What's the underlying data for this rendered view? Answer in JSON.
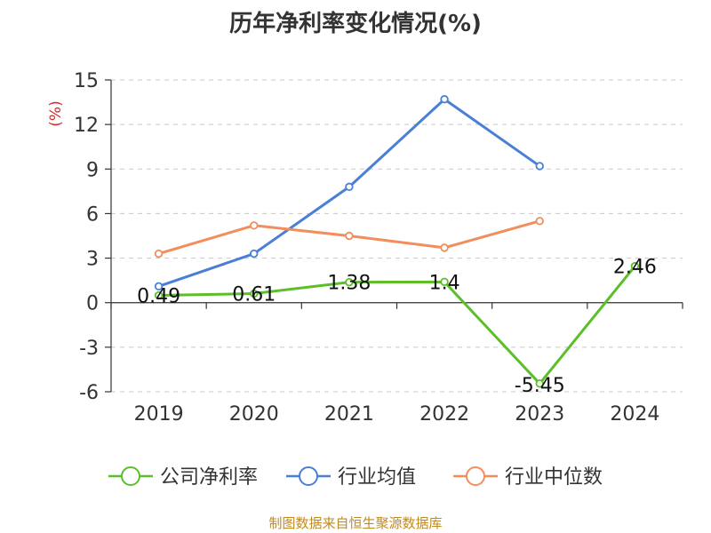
{
  "title": "历年净利率变化情况(%)",
  "footer": "制图数据来自恒生聚源数据库",
  "chart_data": {
    "type": "line",
    "title": "历年净利率变化情况(%)",
    "ylabel": "(%)",
    "categories": [
      "2019",
      "2020",
      "2021",
      "2022",
      "2023",
      "2024"
    ],
    "yticks": [
      15,
      12,
      9,
      6,
      3,
      0,
      -3,
      -6
    ],
    "ylim": [
      -6,
      15
    ],
    "grid": true,
    "legend_position": "bottom",
    "series": [
      {
        "name": "公司净利率",
        "color": "#5cbf2a",
        "values": [
          0.49,
          0.61,
          1.38,
          1.4,
          -5.45,
          2.46
        ],
        "labels": [
          "0.49",
          "0.61",
          "1.38",
          "1.4",
          "-5.45",
          "2.46"
        ]
      },
      {
        "name": "行业均值",
        "color": "#4a7fd6",
        "values": [
          1.1,
          3.3,
          7.8,
          13.7,
          9.2,
          null
        ]
      },
      {
        "name": "行业中位数",
        "color": "#f28d5c",
        "values": [
          3.3,
          5.2,
          4.5,
          3.7,
          5.5,
          null
        ]
      }
    ]
  }
}
